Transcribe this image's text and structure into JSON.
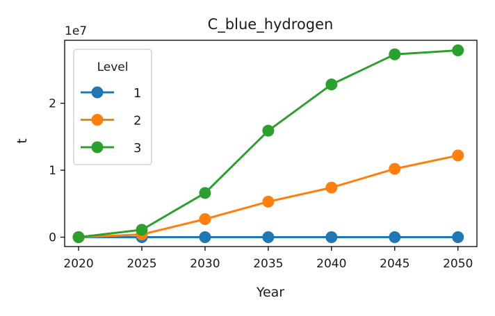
{
  "chart_data": {
    "type": "line",
    "title": "C_blue_hydrogen",
    "xlabel": "Year",
    "ylabel": "t",
    "y_offset_label": "1e7",
    "x": [
      2020,
      2025,
      2030,
      2035,
      2040,
      2045,
      2050
    ],
    "xlim": [
      2018.9,
      2051.5
    ],
    "ylim": [
      -1400000,
      29400000
    ],
    "x_ticks": [
      2020,
      2025,
      2030,
      2035,
      2040,
      2045,
      2050
    ],
    "y_ticks": [
      {
        "value": 0,
        "label": "0"
      },
      {
        "value": 10000000,
        "label": "1"
      },
      {
        "value": 20000000,
        "label": "2"
      }
    ],
    "grid": false,
    "legend": {
      "title": "Level",
      "placement": "top-left"
    },
    "series": [
      {
        "name": "1",
        "color": "#1f77b4",
        "values": [
          0,
          0,
          0,
          0,
          0,
          0,
          0
        ]
      },
      {
        "name": "2",
        "color": "#ff7f0e",
        "values": [
          0,
          400000,
          2700000,
          5300000,
          7400000,
          10200000,
          12200000
        ]
      },
      {
        "name": "3",
        "color": "#2ca02c",
        "values": [
          0,
          1100000,
          6600000,
          15900000,
          22800000,
          27300000,
          27900000
        ]
      }
    ]
  }
}
